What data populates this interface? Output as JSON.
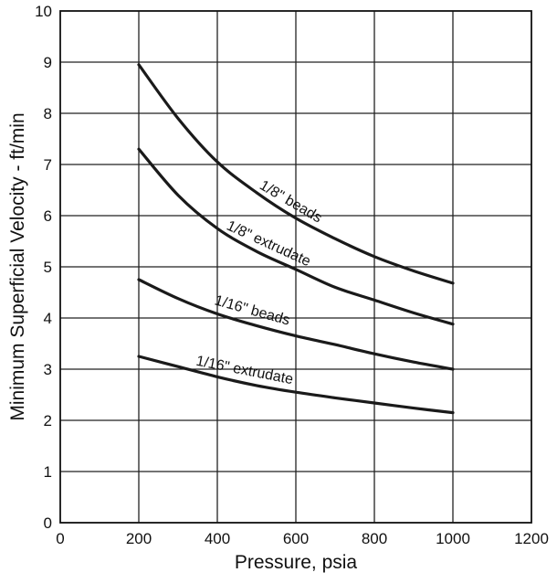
{
  "chart_data": {
    "type": "line",
    "title": "",
    "xlabel": "Pressure, psia",
    "ylabel": "Minimum Superficial Velocity - ft/min",
    "xlim": [
      0,
      1200
    ],
    "ylim": [
      0,
      10
    ],
    "x_ticks": [
      "0",
      "200",
      "400",
      "600",
      "800",
      "1000",
      "1200"
    ],
    "y_ticks": [
      "0",
      "1",
      "2",
      "3",
      "4",
      "5",
      "6",
      "7",
      "8",
      "9",
      "10"
    ],
    "grid": true,
    "legend": "none (curves labeled directly)",
    "series": [
      {
        "name": "1/8\" beads",
        "x": [
          200,
          300,
          400,
          500,
          600,
          700,
          800,
          900,
          1000
        ],
        "y": [
          8.95,
          7.9,
          7.05,
          6.45,
          5.95,
          5.55,
          5.2,
          4.92,
          4.68
        ]
      },
      {
        "name": "1/8\" extrudate",
        "x": [
          200,
          300,
          400,
          500,
          600,
          700,
          800,
          900,
          1000
        ],
        "y": [
          7.3,
          6.4,
          5.75,
          5.3,
          4.95,
          4.6,
          4.35,
          4.1,
          3.88
        ]
      },
      {
        "name": "1/16\" beads",
        "x": [
          200,
          300,
          400,
          500,
          600,
          700,
          800,
          900,
          1000
        ],
        "y": [
          4.75,
          4.38,
          4.08,
          3.85,
          3.65,
          3.48,
          3.3,
          3.14,
          3.0
        ]
      },
      {
        "name": "1/16\" extrudate",
        "x": [
          200,
          300,
          400,
          500,
          600,
          700,
          800,
          900,
          1000
        ],
        "y": [
          3.25,
          3.05,
          2.85,
          2.68,
          2.55,
          2.44,
          2.34,
          2.24,
          2.15
        ]
      }
    ]
  }
}
